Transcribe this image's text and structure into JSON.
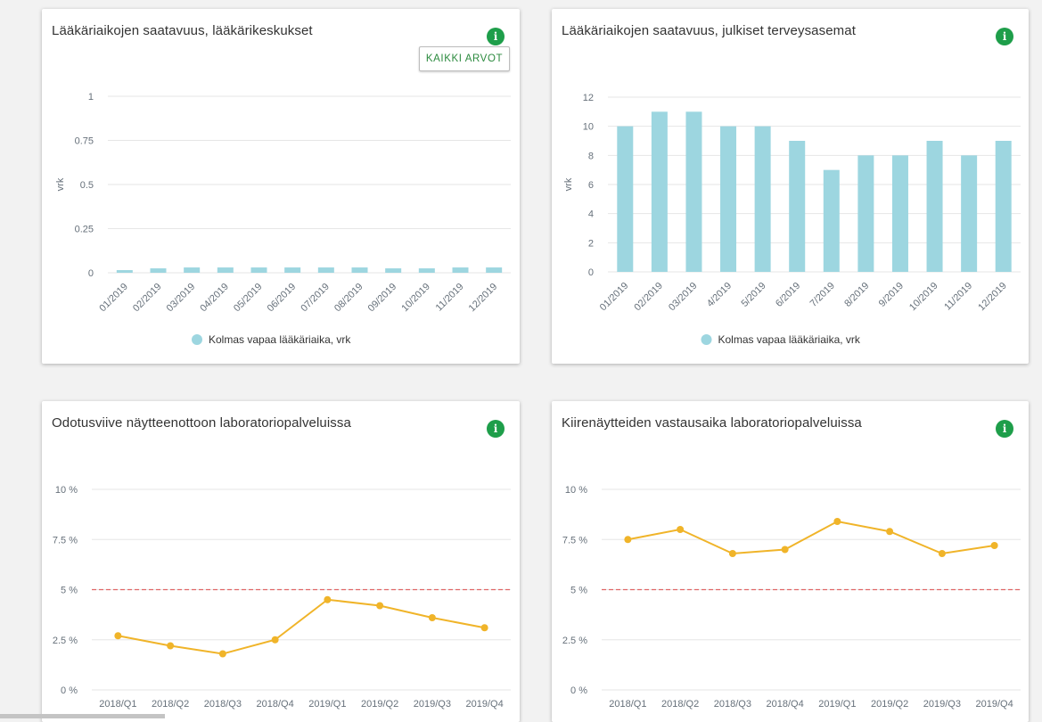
{
  "colors": {
    "bar": "#9dd6e0",
    "line": "#f0b429",
    "threshold": "#e06666",
    "grid": "#e6e6e6",
    "axis_text": "#66707a",
    "info_icon": "#1e9e4a",
    "button_text": "#2b8a3e"
  },
  "cards": [
    {
      "title": "Lääkäriaikojen saatavuus, lääkärikeskukset",
      "info_icon": "i",
      "button_label": "KAIKKI ARVOT"
    },
    {
      "title": "Lääkäriaikojen saatavuus, julkiset terveysasemat",
      "info_icon": "i"
    },
    {
      "title": "Odotusviive näytteenottoon laboratoriopalveluissa",
      "info_icon": "i"
    },
    {
      "title": "Kiirenäytteiden vastausaika laboratoriopalveluissa",
      "info_icon": "i"
    }
  ],
  "chart_data": [
    {
      "type": "bar",
      "ylabel": "vrk",
      "ylim": [
        0,
        1
      ],
      "yticks": [
        "0",
        "0.25",
        "0.5",
        "0.75",
        "1"
      ],
      "yticks_values": [
        0,
        0.25,
        0.5,
        0.75,
        1
      ],
      "categories": [
        "01/2019",
        "02/2019",
        "03/2019",
        "04/2019",
        "05/2019",
        "06/2019",
        "07/2019",
        "08/2019",
        "09/2019",
        "10/2019",
        "11/2019",
        "12/2019"
      ],
      "series": [
        {
          "name": "Kolmas vapaa lääkäriaika, vrk",
          "values": [
            0.015,
            0.025,
            0.03,
            0.03,
            0.03,
            0.03,
            0.03,
            0.03,
            0.025,
            0.025,
            0.03,
            0.03
          ]
        }
      ],
      "grid": true,
      "legend": "bottom"
    },
    {
      "type": "bar",
      "ylabel": "vrk",
      "ylim": [
        0,
        12
      ],
      "yticks": [
        "0",
        "2",
        "4",
        "6",
        "8",
        "10",
        "12"
      ],
      "yticks_values": [
        0,
        2,
        4,
        6,
        8,
        10,
        12
      ],
      "categories": [
        "01/2019",
        "02/2019",
        "03/2019",
        "4/2019",
        "5/2019",
        "6/2019",
        "7/2019",
        "8/2019",
        "9/2019",
        "10/2019",
        "11/2019",
        "12/2019"
      ],
      "series": [
        {
          "name": "Kolmas vapaa lääkäriaika, vrk",
          "values": [
            10,
            11,
            11,
            10,
            10,
            9,
            7,
            8,
            8,
            9,
            8,
            9
          ]
        }
      ],
      "grid": true,
      "legend": "bottom"
    },
    {
      "type": "line",
      "ylim": [
        0,
        10
      ],
      "yticks": [
        "0 %",
        "2.5 %",
        "5 %",
        "7.5 %",
        "10 %"
      ],
      "yticks_values": [
        0,
        2.5,
        5,
        7.5,
        10
      ],
      "categories": [
        "2018/Q1",
        "2018/Q2",
        "2018/Q3",
        "2018/Q4",
        "2019/Q1",
        "2019/Q2",
        "2019/Q3",
        "2019/Q4"
      ],
      "series": [
        {
          "values": [
            2.7,
            2.2,
            1.8,
            2.5,
            4.5,
            4.2,
            3.6,
            3.1
          ]
        }
      ],
      "threshold": 5,
      "grid": true
    },
    {
      "type": "line",
      "ylim": [
        0,
        10
      ],
      "yticks": [
        "0 %",
        "2.5 %",
        "5 %",
        "7.5 %",
        "10 %"
      ],
      "yticks_values": [
        0,
        2.5,
        5,
        7.5,
        10
      ],
      "categories": [
        "2018/Q1",
        "2018/Q2",
        "2018/Q3",
        "2018/Q4",
        "2019/Q1",
        "2019/Q2",
        "2019/Q3",
        "2019/Q4"
      ],
      "series": [
        {
          "values": [
            7.5,
            8.0,
            6.8,
            7.0,
            8.4,
            7.9,
            6.8,
            7.2
          ]
        }
      ],
      "threshold": 5,
      "grid": true
    }
  ]
}
